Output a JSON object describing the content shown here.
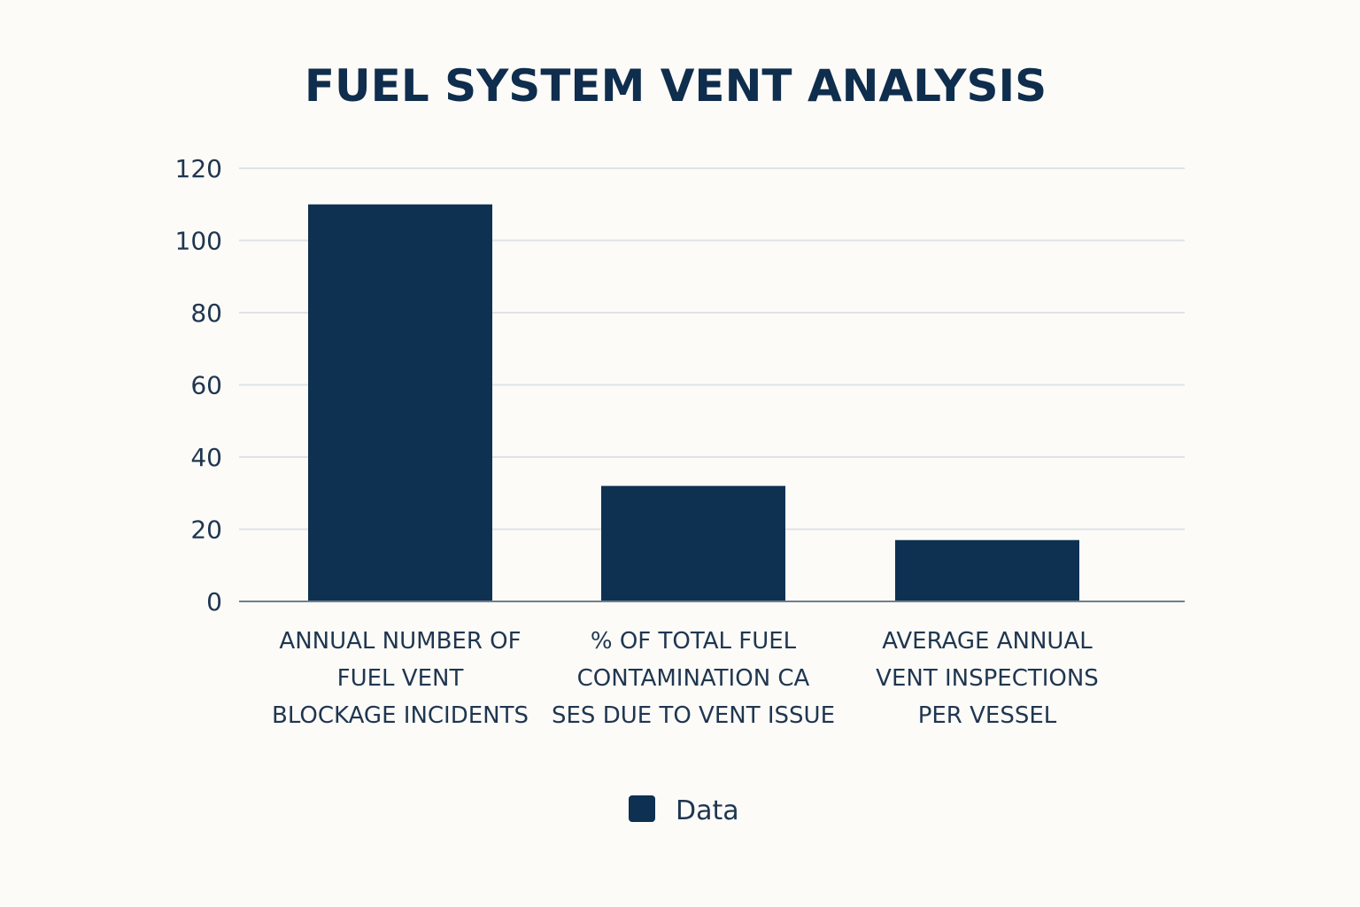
{
  "chart_data": {
    "type": "bar",
    "title": "FUEL SYSTEM VENT ANALYSIS",
    "xlabel": "",
    "ylabel": "",
    "ylim": [
      0,
      120
    ],
    "yticks": [
      0,
      20,
      40,
      60,
      80,
      100,
      120
    ],
    "grid": true,
    "legend_position": "bottom-center",
    "categories": [
      [
        "ANNUAL NUMBER OF",
        "FUEL VENT",
        "BLOCKAGE INCIDENTS"
      ],
      [
        "% OF TOTAL FUEL",
        "CONTAMINATION CA",
        "SES DUE TO VENT ISSUE"
      ],
      [
        "AVERAGE ANNUAL",
        "VENT INSPECTIONS",
        "PER VESSEL"
      ]
    ],
    "series": [
      {
        "name": "Data",
        "values": [
          110,
          32,
          17
        ]
      }
    ]
  },
  "colors": {
    "bar": "#0e3152",
    "title": "#0f2d4d",
    "text": "#1f3650",
    "grid": "#dfe3e6",
    "axis": "#6f7f8f",
    "background": "#fcfbf8"
  }
}
